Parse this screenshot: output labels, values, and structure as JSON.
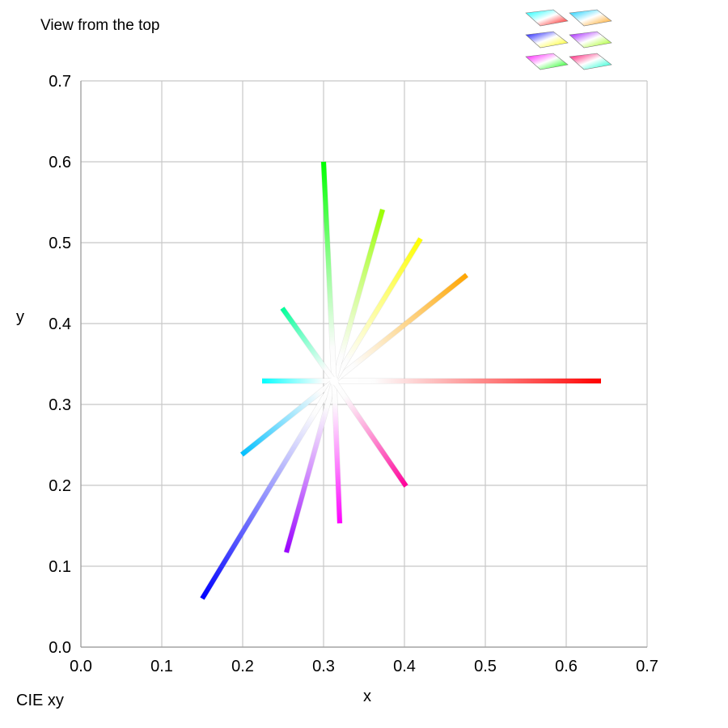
{
  "title": "View from the top",
  "corner_label": "CIE xy",
  "thumbnails": {
    "icon": "view-selector-thumbnails",
    "items": [
      {
        "name": "view-top-1",
        "colors": [
          "#00ffff",
          "#ffffff",
          "#ff0000"
        ]
      },
      {
        "name": "view-top-2",
        "colors": [
          "#00ccff",
          "#ffffff",
          "#ff9900"
        ]
      },
      {
        "name": "view-top-3",
        "colors": [
          "#0000ff",
          "#ffffff",
          "#ffff00"
        ]
      },
      {
        "name": "view-top-4",
        "colors": [
          "#9900ff",
          "#ffffff",
          "#99ff00"
        ]
      },
      {
        "name": "view-top-5",
        "colors": [
          "#ff00ff",
          "#ffffff",
          "#00ff00"
        ]
      },
      {
        "name": "view-top-6",
        "colors": [
          "#ff0066",
          "#ffffff",
          "#00ffcc"
        ]
      }
    ]
  },
  "chart_data": {
    "type": "line",
    "xlabel": "x",
    "ylabel": "y",
    "xlim": [
      0,
      0.7
    ],
    "ylim": [
      0,
      0.7
    ],
    "x_ticks": [
      "0.0",
      "0.1",
      "0.2",
      "0.3",
      "0.4",
      "0.5",
      "0.6",
      "0.7"
    ],
    "y_ticks": [
      "0.0",
      "0.1",
      "0.2",
      "0.3",
      "0.4",
      "0.5",
      "0.6",
      "0.7"
    ],
    "grid": true,
    "white_point": {
      "x": 0.313,
      "y": 0.329,
      "color": "#ffffff"
    },
    "series": [
      {
        "end": {
          "x": 0.643,
          "y": 0.329
        },
        "color": "#ff0000"
      },
      {
        "end": {
          "x": 0.477,
          "y": 0.46
        },
        "color": "#ffa500"
      },
      {
        "end": {
          "x": 0.42,
          "y": 0.505
        },
        "color": "#ffff00"
      },
      {
        "end": {
          "x": 0.373,
          "y": 0.541
        },
        "color": "#99ff00"
      },
      {
        "end": {
          "x": 0.3,
          "y": 0.6
        },
        "color": "#00ff00"
      },
      {
        "end": {
          "x": 0.249,
          "y": 0.419
        },
        "color": "#00ff99"
      },
      {
        "end": {
          "x": 0.224,
          "y": 0.329
        },
        "color": "#00ffff"
      },
      {
        "end": {
          "x": 0.199,
          "y": 0.238
        },
        "color": "#00bfff"
      },
      {
        "end": {
          "x": 0.15,
          "y": 0.06
        },
        "color": "#0000ff"
      },
      {
        "end": {
          "x": 0.254,
          "y": 0.117
        },
        "color": "#9900ff"
      },
      {
        "end": {
          "x": 0.32,
          "y": 0.153
        },
        "color": "#ff00ff"
      },
      {
        "end": {
          "x": 0.402,
          "y": 0.199
        },
        "color": "#ff0099"
      }
    ]
  }
}
